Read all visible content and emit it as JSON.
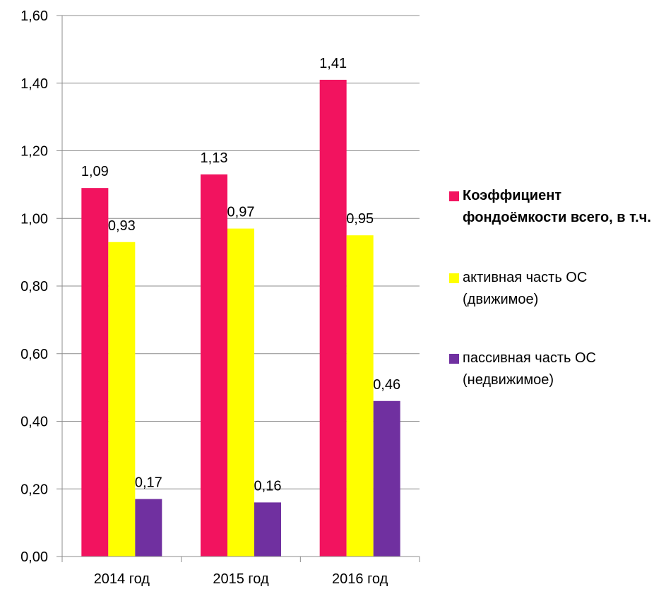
{
  "chart_data": {
    "type": "bar",
    "categories": [
      "2014 год",
      "2015 год",
      "2016 год"
    ],
    "series": [
      {
        "name": "Коэффициент фондоёмкости всего, в т.ч.",
        "values": [
          1.09,
          1.13,
          1.41
        ],
        "color": "#F2135F",
        "labels": [
          "1,09",
          "1,13",
          "1,41"
        ]
      },
      {
        "name": "активная часть ОС (движимое)",
        "values": [
          0.93,
          0.97,
          0.95
        ],
        "color": "#FFFF00",
        "labels": [
          "0,93",
          "0,97",
          "0,95"
        ]
      },
      {
        "name": "пассивная часть ОС (недвижимое)",
        "values": [
          0.17,
          0.16,
          0.46
        ],
        "color": "#7030A0",
        "labels": [
          "0,17",
          "0,16",
          "0,46"
        ]
      }
    ],
    "ylim": [
      0,
      1.6
    ],
    "y_ticks": [
      0,
      0.2,
      0.4,
      0.6,
      0.8,
      1.0,
      1.2,
      1.4,
      1.6
    ],
    "y_tick_labels": [
      "0,00",
      "0,20",
      "0,40",
      "0,60",
      "0,80",
      "1,00",
      "1,20",
      "1,40",
      "1,60"
    ],
    "grid": true,
    "legend_position": "right"
  }
}
